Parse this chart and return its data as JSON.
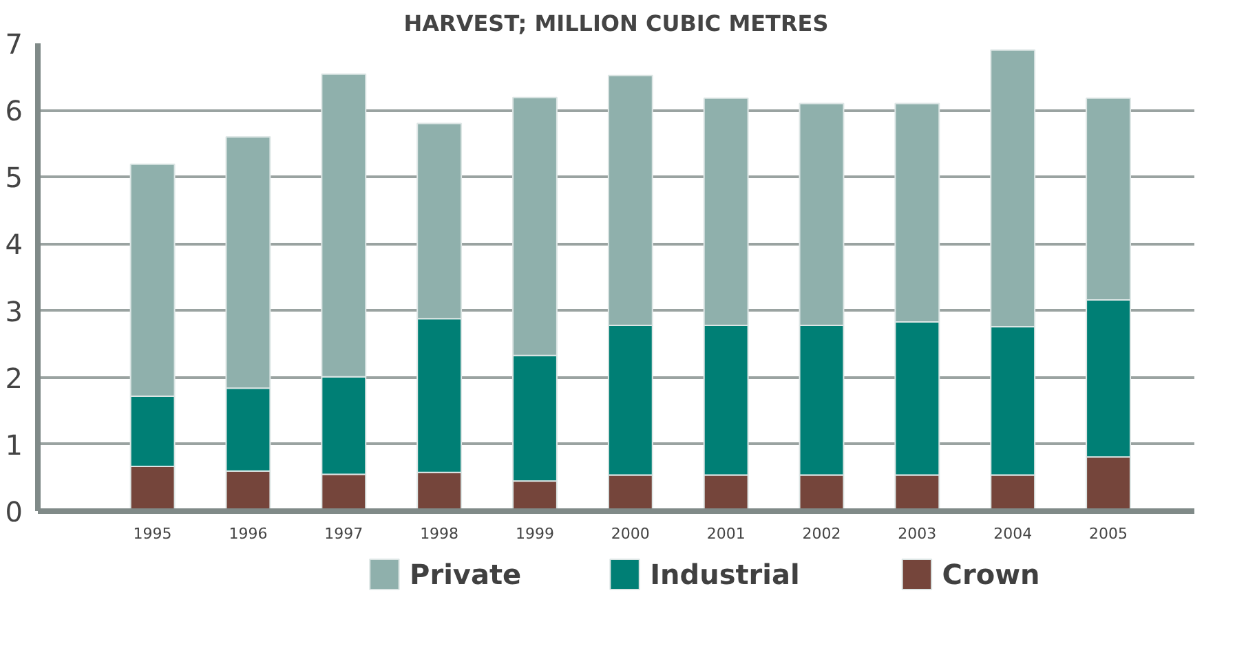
{
  "chart_data": {
    "type": "bar",
    "title": "HARVEST; MILLION CUBIC METRES",
    "stacked": true,
    "categories": [
      null,
      "1995",
      "1996",
      "1997",
      "1998",
      "1999",
      "2000",
      "2001",
      "2002",
      "2003",
      "2004",
      "2005"
    ],
    "series": [
      {
        "name": "Crown",
        "color": "#75453b",
        "values": [
          null,
          0.67,
          0.6,
          0.55,
          0.58,
          0.45,
          0.54,
          0.54,
          0.54,
          0.54,
          0.54,
          0.81
        ]
      },
      {
        "name": "Industrial",
        "color": "#007f75",
        "values": [
          null,
          1.05,
          1.24,
          1.46,
          2.3,
          1.88,
          2.24,
          2.24,
          2.24,
          2.29,
          2.22,
          2.35
        ]
      },
      {
        "name": "Private",
        "color": "#8fb0ac",
        "values": [
          null,
          3.47,
          3.76,
          4.53,
          2.92,
          3.86,
          3.74,
          3.4,
          3.32,
          3.27,
          4.14,
          3.02
        ]
      }
    ],
    "ylim": [
      0,
      7
    ],
    "yticks": [
      0,
      1,
      2,
      3,
      4,
      5,
      6,
      7
    ],
    "grid": "y",
    "legend": "bottom"
  }
}
